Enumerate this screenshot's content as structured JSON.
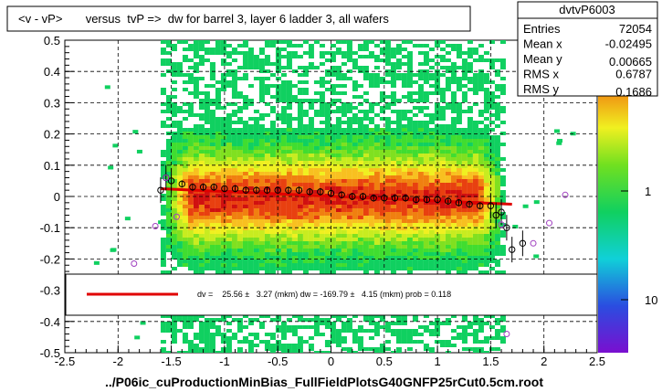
{
  "title": "<v - vP>       versus  tvP =>  dw for barrel 3, layer 6 ladder 3, all wafers",
  "footer": "../P06ic_cuProductionMinBias_FullFieldPlotsG40GNFP25rCut0.5cm.root",
  "stats": {
    "name": "dvtvP6003",
    "rows": [
      {
        "label": "Entries",
        "value": "72054"
      },
      {
        "label": "Mean x",
        "value": "-0.02495"
      },
      {
        "label": "Mean y",
        "value": "0.00665"
      },
      {
        "label": "RMS x",
        "value": "0.6787"
      },
      {
        "label": "RMS y",
        "value": "0.1686"
      }
    ]
  },
  "fit_legend": "dv =    25.56 ±   3.27 (mkm) dw = -169.79 ±   4.15 (mkm) prob = 0.118",
  "colors": {
    "fit_line": "#e00000",
    "profile_marker": "#000000",
    "outlier_marker": "#a040c0"
  },
  "chart_data": {
    "type": "heatmap",
    "xlim": [
      -2.5,
      2.5
    ],
    "ylim": [
      -0.5,
      0.5
    ],
    "x_ticks": [
      "-2.5",
      "-2",
      "-1.5",
      "-1",
      "-0.5",
      "0",
      "0.5",
      "1",
      "1.5",
      "2",
      "2.5"
    ],
    "y_ticks": [
      "-0.5",
      "-0.4",
      "-0.3",
      "-0.2",
      "-0.1",
      "0",
      "0.1",
      "0.2",
      "0.3",
      "0.4",
      "0.5"
    ],
    "colorbar_ticks": [
      "1",
      "10"
    ],
    "grid": true,
    "density_x_range": [
      -1.6,
      1.6
    ],
    "fit_line": {
      "x": [
        -1.6,
        1.7
      ],
      "y": [
        0.025,
        -0.025
      ]
    },
    "profile_points": [
      {
        "x": -1.6,
        "y": 0.02
      },
      {
        "x": -1.55,
        "y": 0.06
      },
      {
        "x": -1.5,
        "y": 0.05
      },
      {
        "x": -1.4,
        "y": 0.04
      },
      {
        "x": -1.3,
        "y": 0.03
      },
      {
        "x": -1.2,
        "y": 0.03
      },
      {
        "x": -1.1,
        "y": 0.03
      },
      {
        "x": -1.0,
        "y": 0.025
      },
      {
        "x": -0.9,
        "y": 0.025
      },
      {
        "x": -0.8,
        "y": 0.02
      },
      {
        "x": -0.7,
        "y": 0.02
      },
      {
        "x": -0.6,
        "y": 0.02
      },
      {
        "x": -0.5,
        "y": 0.02
      },
      {
        "x": -0.4,
        "y": 0.02
      },
      {
        "x": -0.3,
        "y": 0.02
      },
      {
        "x": -0.2,
        "y": 0.015
      },
      {
        "x": -0.1,
        "y": 0.015
      },
      {
        "x": 0.0,
        "y": 0.01
      },
      {
        "x": 0.1,
        "y": 0.005
      },
      {
        "x": 0.2,
        "y": 0.0
      },
      {
        "x": 0.3,
        "y": 0.0
      },
      {
        "x": 0.4,
        "y": -0.005
      },
      {
        "x": 0.5,
        "y": -0.005
      },
      {
        "x": 0.6,
        "y": -0.005
      },
      {
        "x": 0.7,
        "y": -0.005
      },
      {
        "x": 0.8,
        "y": -0.01
      },
      {
        "x": 0.9,
        "y": -0.01
      },
      {
        "x": 1.0,
        "y": -0.01
      },
      {
        "x": 1.1,
        "y": -0.015
      },
      {
        "x": 1.2,
        "y": -0.02
      },
      {
        "x": 1.3,
        "y": -0.025
      },
      {
        "x": 1.4,
        "y": -0.03
      },
      {
        "x": 1.5,
        "y": -0.03
      },
      {
        "x": 1.55,
        "y": -0.06
      },
      {
        "x": 1.6,
        "y": -0.05
      },
      {
        "x": 1.65,
        "y": -0.1
      },
      {
        "x": 1.7,
        "y": -0.17
      },
      {
        "x": 1.8,
        "y": -0.15
      }
    ],
    "outlier_points": [
      {
        "x": -1.85,
        "y": -0.215
      },
      {
        "x": -1.65,
        "y": -0.095
      },
      {
        "x": -1.55,
        "y": 0.06
      },
      {
        "x": -1.45,
        "y": -0.065
      },
      {
        "x": 1.6,
        "y": -0.09
      },
      {
        "x": 1.9,
        "y": -0.15
      },
      {
        "x": 2.05,
        "y": -0.085
      },
      {
        "x": 2.2,
        "y": 0.005
      },
      {
        "x": 1.65,
        "y": -0.44
      }
    ]
  }
}
